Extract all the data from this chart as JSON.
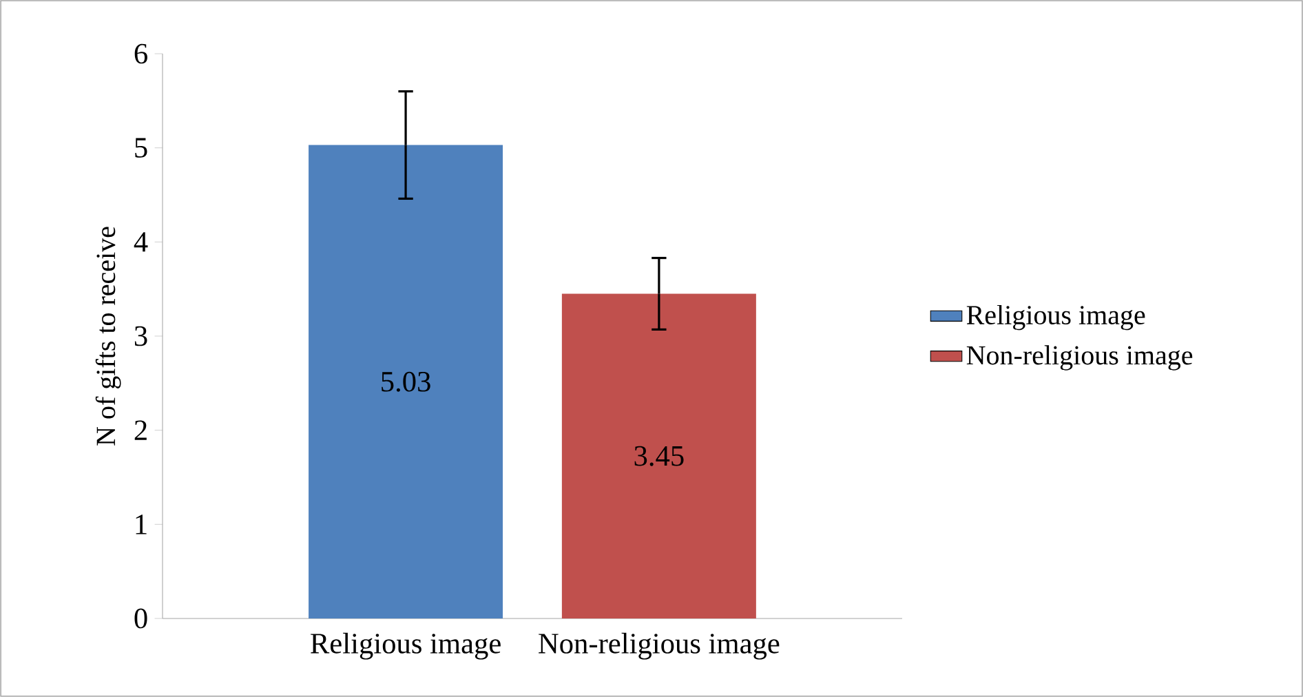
{
  "chart_data": {
    "type": "bar",
    "ylabel": "N of gifts to receive",
    "categories": [
      "Religious image",
      "Non-religious image"
    ],
    "series": [
      {
        "name": "Religious image",
        "color": "#4f81bd",
        "values": [
          5.03,
          null
        ],
        "errors": [
          0.57,
          null
        ]
      },
      {
        "name": "Non-religious image",
        "color": "#c0504d",
        "values": [
          null,
          3.45
        ],
        "errors": [
          null,
          0.38
        ]
      }
    ],
    "ylim": [
      0,
      6
    ],
    "yticks": [
      0,
      1,
      2,
      3,
      4,
      5,
      6
    ],
    "data_labels": true,
    "legend": "right",
    "grid": false
  }
}
